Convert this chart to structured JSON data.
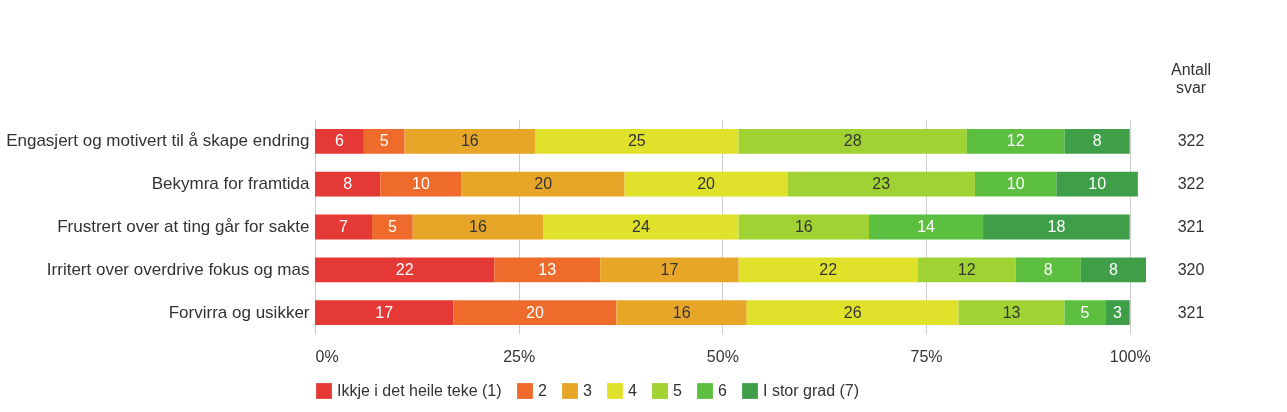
{
  "chart_data": {
    "type": "bar",
    "orientation": "horizontal",
    "stacked": true,
    "categories": [
      "Engasjert og motivert til å skape endring",
      "Bekymra for framtida",
      "Frustrert over at ting går for sakte",
      "Irritert over overdrive fokus og mas",
      "Forvirra og usikker"
    ],
    "series": [
      {
        "name": "Ikkje i det heile teke (1)",
        "color": "#e53935",
        "values": [
          6,
          8,
          7,
          22,
          17
        ]
      },
      {
        "name": "2",
        "color": "#ee6b2b",
        "values": [
          5,
          10,
          5,
          13,
          20
        ]
      },
      {
        "name": "3",
        "color": "#e8a628",
        "values": [
          16,
          20,
          16,
          17,
          16
        ]
      },
      {
        "name": "4",
        "color": "#dfe12b",
        "values": [
          25,
          20,
          24,
          22,
          26
        ]
      },
      {
        "name": "5",
        "color": "#9fd232",
        "values": [
          28,
          23,
          16,
          12,
          13
        ]
      },
      {
        "name": "6",
        "color": "#5cbf3f",
        "values": [
          12,
          10,
          14,
          8,
          5
        ]
      },
      {
        "name": "I stor grad (7)",
        "color": "#3f9f48",
        "values": [
          8,
          10,
          18,
          8,
          3
        ]
      }
    ],
    "xlim": [
      0,
      102
    ],
    "xticks": [
      {
        "value": 0,
        "label": "0%"
      },
      {
        "value": 25,
        "label": "25%"
      },
      {
        "value": 50,
        "label": "50%"
      },
      {
        "value": 75,
        "label": "75%"
      },
      {
        "value": 100,
        "label": "100%"
      }
    ],
    "grid": "x",
    "legend": "bottom",
    "data_labels": true,
    "annotations": [
      "Antall svar",
      "322",
      "322",
      "321",
      "320",
      "321"
    ]
  }
}
